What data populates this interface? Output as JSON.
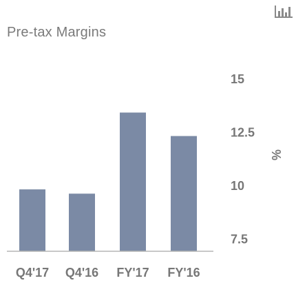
{
  "chart_data": {
    "type": "bar",
    "title": "Pre-tax Margins",
    "categories": [
      "Q4'17",
      "Q4'16",
      "FY'17",
      "FY'16"
    ],
    "values": [
      9.8,
      9.6,
      13.4,
      12.3
    ],
    "ylabel": "%",
    "ylim": [
      6.9,
      15
    ],
    "yticks": [
      7.5,
      10,
      12.5,
      15
    ],
    "ytick_labels": [
      "7.5",
      "10",
      "12.5",
      "15"
    ],
    "y_axis_position": "right",
    "grid": false,
    "bar_color": "#7b8aa5"
  },
  "icon": "bar-chart-icon"
}
